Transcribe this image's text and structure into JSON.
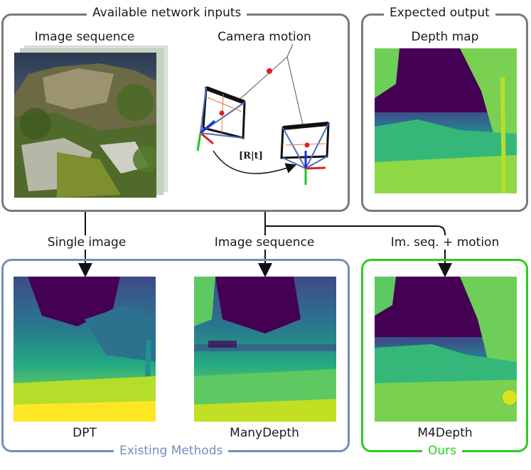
{
  "inputs_box": {
    "title": "Available network inputs",
    "image_sequence_label": "Image sequence",
    "camera_motion_label": "Camera motion",
    "transform_label": "[R|t]"
  },
  "output_box": {
    "title": "Expected output",
    "depth_map_label": "Depth map"
  },
  "flows": {
    "single_image": "Single  image",
    "image_sequence": "Image sequence",
    "seq_plus_motion": "Im. seq. + motion"
  },
  "existing_box": {
    "title": "Existing Methods",
    "method1": "DPT",
    "method2": "ManyDepth"
  },
  "ours_box": {
    "title": "Ours",
    "method": "M4Depth"
  },
  "colors": {
    "box_gray": "#7a7a7a",
    "existing_blue": "#6f8fbf",
    "ours_green": "#2ecc1f",
    "depth_far": "#440154",
    "depth_mid": "#21918c",
    "depth_near": "#fde725"
  }
}
